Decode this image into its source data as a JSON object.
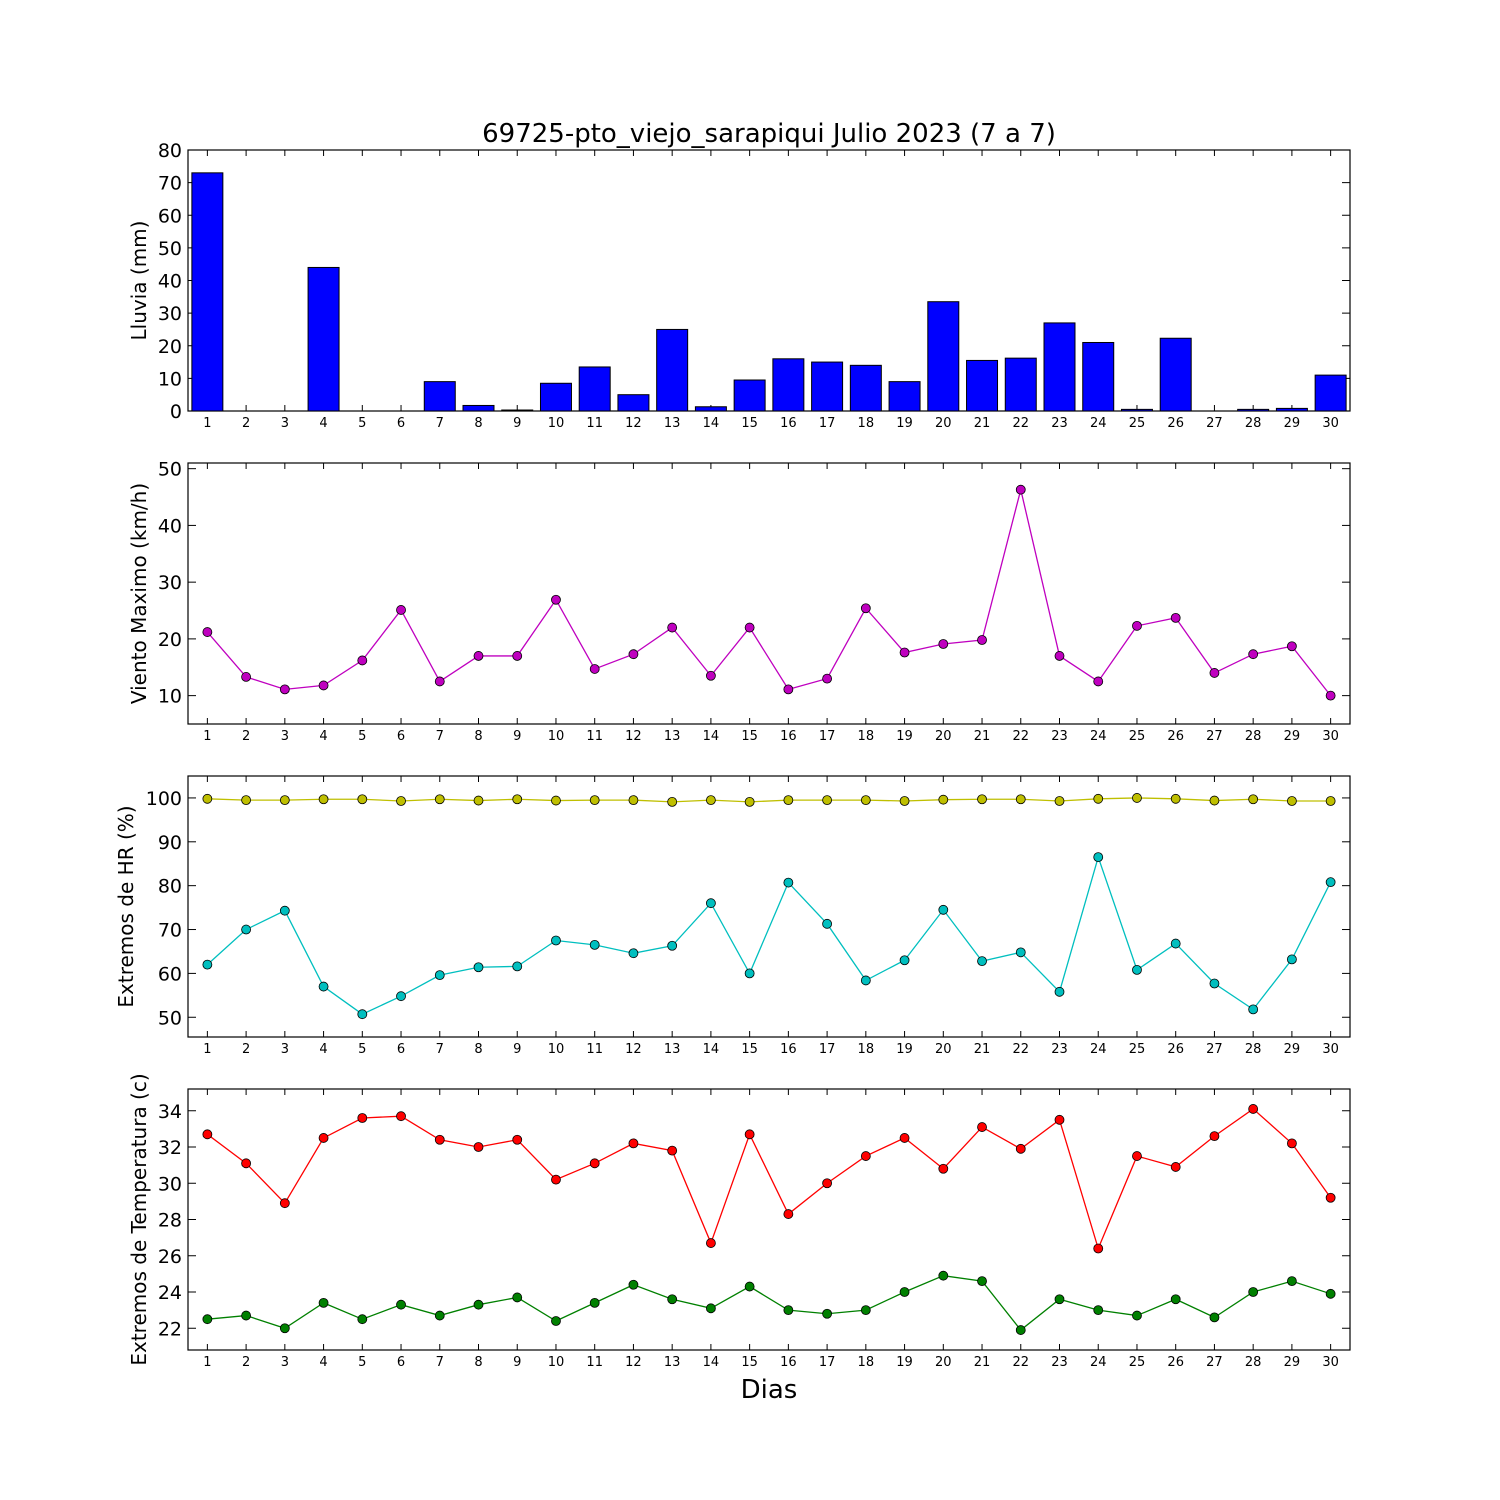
{
  "title": "69725-pto_viejo_sarapiqui Julio 2023  (7 a 7)",
  "xlabel": "Dias",
  "chart_data": [
    {
      "type": "bar",
      "ylabel": "Lluvia (mm)",
      "ylim": [
        0,
        80
      ],
      "yticks": [
        0,
        10,
        20,
        30,
        40,
        50,
        60,
        70,
        80
      ],
      "xlim": [
        0.5,
        30.5
      ],
      "categories": [
        "1",
        "2",
        "3",
        "4",
        "5",
        "6",
        "7",
        "8",
        "9",
        "10",
        "11",
        "12",
        "13",
        "14",
        "15",
        "16",
        "17",
        "18",
        "19",
        "20",
        "21",
        "22",
        "23",
        "24",
        "25",
        "26",
        "27",
        "28",
        "29",
        "30"
      ],
      "series": [
        {
          "color": "#0000ff",
          "values": [
            73,
            0,
            0,
            44,
            0,
            0,
            9,
            1.7,
            0.3,
            8.5,
            13.5,
            5,
            25,
            1.3,
            9.5,
            16,
            15,
            14,
            9,
            33.5,
            15.5,
            16.2,
            27,
            21,
            0.5,
            22.3,
            0,
            0.5,
            0.8,
            11
          ]
        }
      ]
    },
    {
      "type": "line",
      "ylabel": "Viento Maximo (km/h)",
      "ylim": [
        5,
        51
      ],
      "yticks": [
        10,
        20,
        30,
        40,
        50
      ],
      "xlim": [
        0.5,
        30.5
      ],
      "x": [
        1,
        2,
        3,
        4,
        5,
        6,
        7,
        8,
        9,
        10,
        11,
        12,
        13,
        14,
        15,
        16,
        17,
        18,
        19,
        20,
        21,
        22,
        23,
        24,
        25,
        26,
        27,
        28,
        29,
        30
      ],
      "series": [
        {
          "color": "#bf00bf",
          "values": [
            21.2,
            13.3,
            11.1,
            11.8,
            16.2,
            25.1,
            12.5,
            17,
            17,
            26.9,
            14.7,
            17.3,
            22,
            13.5,
            22,
            11.1,
            13,
            25.4,
            17.6,
            19.1,
            19.8,
            46.3,
            17,
            12.5,
            22.3,
            23.7,
            14,
            17.3,
            18.7,
            10
          ]
        }
      ]
    },
    {
      "type": "line",
      "ylabel": "Extremos de HR (%)",
      "ylim": [
        45.5,
        105
      ],
      "yticks": [
        50,
        60,
        70,
        80,
        90,
        100
      ],
      "xlim": [
        0.5,
        30.5
      ],
      "x": [
        1,
        2,
        3,
        4,
        5,
        6,
        7,
        8,
        9,
        10,
        11,
        12,
        13,
        14,
        15,
        16,
        17,
        18,
        19,
        20,
        21,
        22,
        23,
        24,
        25,
        26,
        27,
        28,
        29,
        30
      ],
      "series": [
        {
          "color": "#bfbf00",
          "values": [
            99.8,
            99.5,
            99.5,
            99.7,
            99.7,
            99.3,
            99.7,
            99.4,
            99.7,
            99.4,
            99.5,
            99.5,
            99.1,
            99.5,
            99.1,
            99.5,
            99.5,
            99.5,
            99.3,
            99.6,
            99.7,
            99.7,
            99.3,
            99.8,
            100,
            99.8,
            99.4,
            99.7,
            99.3,
            99.3
          ]
        },
        {
          "color": "#00bfbf",
          "values": [
            62,
            70,
            74.3,
            57,
            50.7,
            54.8,
            59.6,
            61.4,
            61.6,
            67.5,
            66.5,
            64.6,
            66.3,
            76,
            60,
            80.7,
            71.3,
            58.4,
            63,
            74.5,
            62.8,
            64.8,
            55.8,
            86.5,
            60.8,
            66.8,
            57.7,
            51.8,
            63.2,
            80.8
          ]
        }
      ]
    },
    {
      "type": "line",
      "ylabel": "Extremos de Temperatura (c)",
      "ylim": [
        20.8,
        35.2
      ],
      "yticks": [
        22,
        24,
        26,
        28,
        30,
        32,
        34
      ],
      "xlim": [
        0.5,
        30.5
      ],
      "x": [
        1,
        2,
        3,
        4,
        5,
        6,
        7,
        8,
        9,
        10,
        11,
        12,
        13,
        14,
        15,
        16,
        17,
        18,
        19,
        20,
        21,
        22,
        23,
        24,
        25,
        26,
        27,
        28,
        29,
        30
      ],
      "series": [
        {
          "color": "#ff0000",
          "values": [
            32.7,
            31.1,
            28.9,
            32.5,
            33.6,
            33.7,
            32.4,
            32,
            32.4,
            30.2,
            31.1,
            32.2,
            31.8,
            26.7,
            32.7,
            28.3,
            30,
            31.5,
            32.5,
            30.8,
            33.1,
            31.9,
            33.5,
            26.4,
            31.5,
            30.9,
            32.6,
            34.1,
            32.2,
            29.2
          ]
        },
        {
          "color": "#008000",
          "values": [
            22.5,
            22.7,
            22,
            23.4,
            22.5,
            23.3,
            22.7,
            23.3,
            23.7,
            22.4,
            23.4,
            24.4,
            23.6,
            23.1,
            24.3,
            23,
            22.8,
            23,
            24,
            24.9,
            24.6,
            21.9,
            23.6,
            23,
            22.7,
            23.6,
            22.6,
            24,
            24.6,
            23.9
          ]
        }
      ]
    }
  ]
}
